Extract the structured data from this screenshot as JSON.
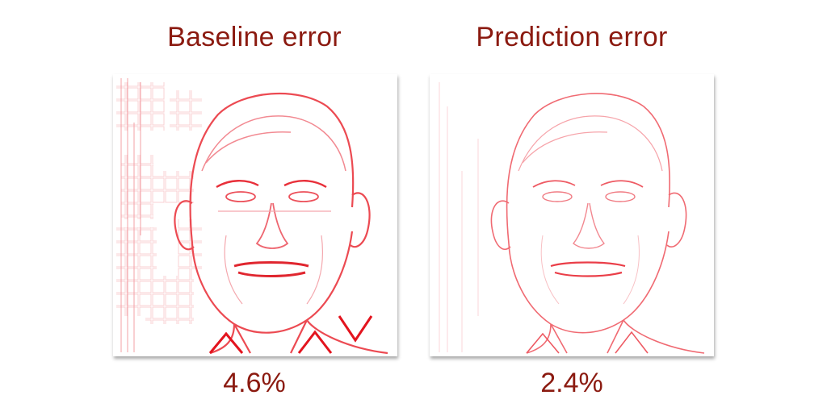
{
  "colors": {
    "text": "#8b1a10",
    "error_strong": "#e8202a",
    "error_light": "#f6b3b8",
    "background": "#ffffff"
  },
  "panels": [
    {
      "title": "Baseline error",
      "value": "4.6%",
      "image": "face-error-map-baseline"
    },
    {
      "title": "Prediction error",
      "value": "2.4%",
      "image": "face-error-map-prediction"
    }
  ]
}
